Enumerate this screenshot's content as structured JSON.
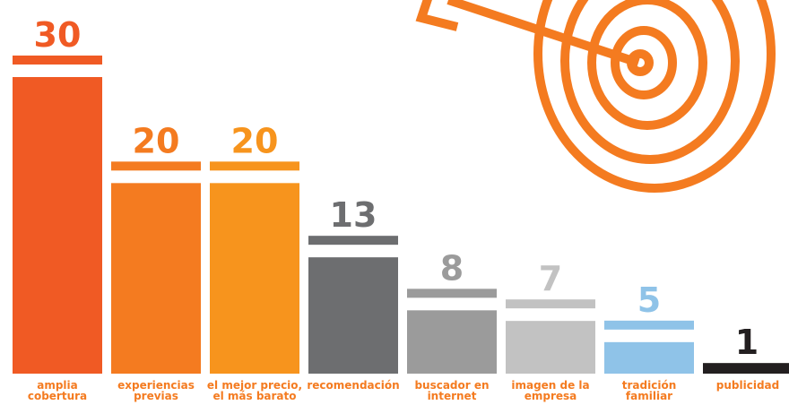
{
  "chart_data": {
    "type": "bar",
    "categories": [
      "amplia cobertura",
      "experiencias previas",
      "el mejor precio, el más barato",
      "recomendación",
      "buscador en internet",
      "imagen de la empresa",
      "tradición familiar",
      "publicidad"
    ],
    "values": [
      30,
      20,
      20,
      13,
      8,
      7,
      5,
      1
    ],
    "colors": [
      "#f05a24",
      "#f47b20",
      "#f7941d",
      "#6d6e70",
      "#9b9b9b",
      "#c2c2c2",
      "#8fc3e8",
      "#231f20"
    ]
  }
}
